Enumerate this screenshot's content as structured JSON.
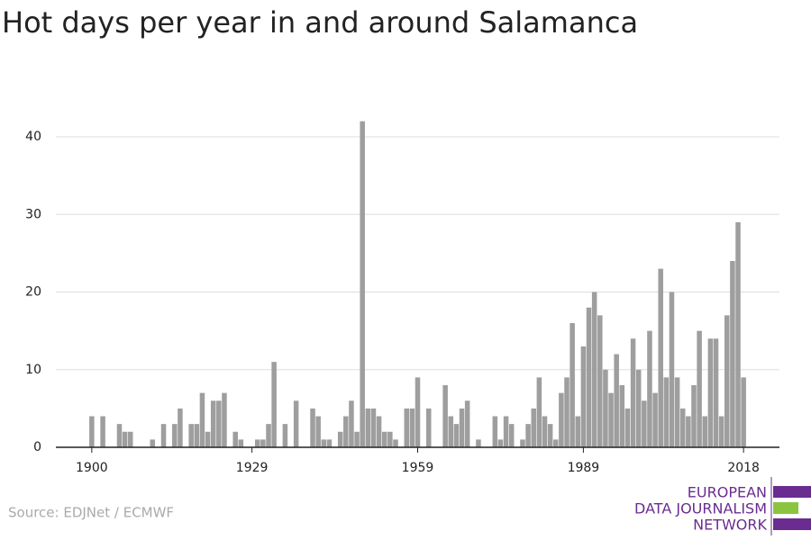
{
  "chart_data": {
    "type": "bar",
    "title": "Hot days per year in and around Salamanca",
    "source": "Source: EDJNet / ECMWF",
    "logo": [
      "EUROPEAN",
      "DATA JOURNALISM",
      "NETWORK"
    ],
    "color": "#9e9e9e",
    "grid": true,
    "x": [
      1900,
      1901,
      1902,
      1903,
      1904,
      1905,
      1906,
      1907,
      1908,
      1909,
      1910,
      1911,
      1912,
      1913,
      1914,
      1915,
      1916,
      1917,
      1918,
      1919,
      1920,
      1921,
      1922,
      1923,
      1924,
      1925,
      1926,
      1927,
      1928,
      1929,
      1930,
      1931,
      1932,
      1933,
      1934,
      1935,
      1936,
      1937,
      1938,
      1939,
      1940,
      1941,
      1942,
      1943,
      1944,
      1945,
      1946,
      1947,
      1948,
      1949,
      1950,
      1951,
      1952,
      1953,
      1954,
      1955,
      1956,
      1957,
      1958,
      1959,
      1960,
      1961,
      1962,
      1963,
      1964,
      1965,
      1966,
      1967,
      1968,
      1969,
      1970,
      1971,
      1972,
      1973,
      1974,
      1975,
      1976,
      1977,
      1978,
      1979,
      1980,
      1981,
      1982,
      1983,
      1984,
      1985,
      1986,
      1987,
      1988,
      1989,
      1990,
      1991,
      1992,
      1993,
      1994,
      1995,
      1996,
      1997,
      1998,
      1999,
      2000,
      2001,
      2002,
      2003,
      2004,
      2005,
      2006,
      2007,
      2008,
      2009,
      2010,
      2011,
      2012,
      2013,
      2014,
      2015,
      2016,
      2017,
      2018
    ],
    "values": [
      4,
      0,
      4,
      0,
      0,
      3,
      2,
      2,
      0,
      0,
      0,
      1,
      0,
      3,
      0,
      3,
      5,
      0,
      3,
      3,
      7,
      2,
      6,
      6,
      7,
      0,
      2,
      1,
      0,
      0,
      1,
      1,
      3,
      11,
      0,
      3,
      0,
      6,
      0,
      0,
      5,
      4,
      1,
      1,
      0,
      2,
      4,
      6,
      2,
      42,
      5,
      5,
      4,
      2,
      2,
      1,
      0,
      5,
      5,
      9,
      0,
      5,
      0,
      0,
      8,
      4,
      3,
      5,
      6,
      0,
      1,
      0,
      0,
      4,
      1,
      4,
      3,
      0,
      1,
      3,
      5,
      9,
      4,
      3,
      1,
      7,
      9,
      16,
      4,
      13,
      18,
      20,
      17,
      10,
      7,
      12,
      8,
      5,
      14,
      10,
      6,
      15,
      7,
      23,
      9,
      20,
      9,
      5,
      4,
      8,
      15,
      4,
      14,
      14,
      4,
      17,
      24,
      29,
      9
    ],
    "xlim": [
      1893.5,
      2024.5
    ],
    "xticks": [
      1900,
      1929,
      1959,
      1989,
      2018
    ],
    "ylim": [
      0,
      42
    ],
    "yticks": [
      0,
      10,
      20,
      30,
      40
    ]
  }
}
